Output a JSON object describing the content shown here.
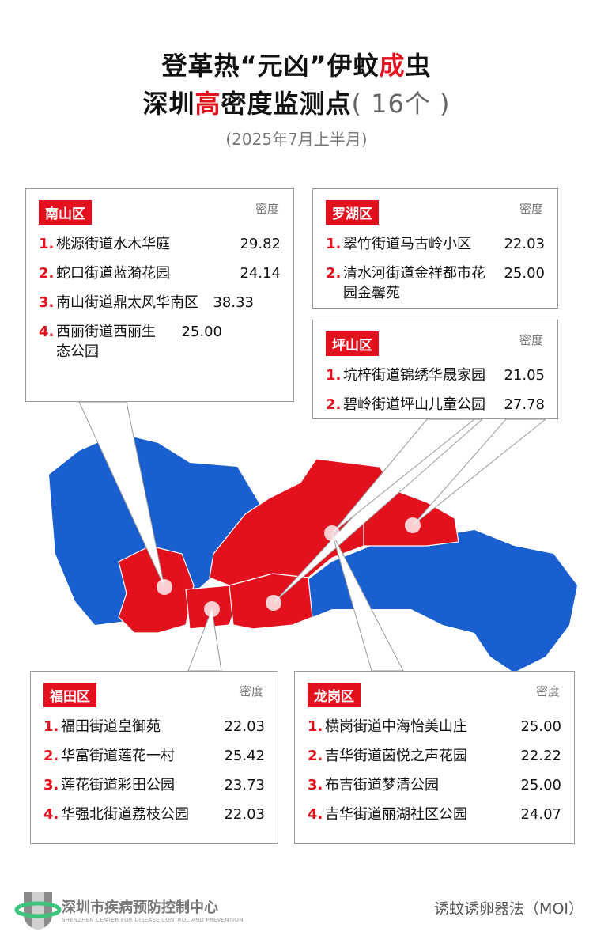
{
  "title": {
    "line1_pre": "登革热“元凶”伊蚊",
    "line1_red": "成",
    "line1_post": "虫",
    "line2_pre": "深圳",
    "line2_red": "高",
    "line2_post": "密度监测点",
    "count": "( 16个 )",
    "subtitle": "(2025年7月上半月)"
  },
  "density_label": "密度",
  "districts": {
    "nanshan": {
      "name": "南山区",
      "items": [
        {
          "n": "1.",
          "name": "桃源街道水木华庭",
          "v": "29.82"
        },
        {
          "n": "2.",
          "name": "蛇口街道蓝漪花园",
          "v": "24.14"
        },
        {
          "n": "3.",
          "name": "南山街道鼎太风华南区",
          "v": "38.33"
        },
        {
          "n": "4.",
          "name": "西丽街道西丽生态公园",
          "v": "25.00"
        }
      ]
    },
    "luohu": {
      "name": "罗湖区",
      "items": [
        {
          "n": "1.",
          "name": "翠竹街道马古岭小区",
          "v": "22.03"
        },
        {
          "n": "2.",
          "name": "清水河街道金祥都市花园金馨苑",
          "v": "25.00"
        }
      ]
    },
    "pingshan": {
      "name": "坪山区",
      "items": [
        {
          "n": "1.",
          "name": "坑梓街道锦绣华晟家园",
          "v": "21.05"
        },
        {
          "n": "2.",
          "name": "碧岭街道坪山儿童公园",
          "v": "27.78"
        }
      ]
    },
    "futian": {
      "name": "福田区",
      "items": [
        {
          "n": "1.",
          "name": "福田街道皇御苑",
          "v": "22.03"
        },
        {
          "n": "2.",
          "name": "华富街道莲花一村",
          "v": "25.42"
        },
        {
          "n": "3.",
          "name": "莲花街道彩田公园",
          "v": "23.73"
        },
        {
          "n": "4.",
          "name": "华强北街道荔枝公园",
          "v": "22.03"
        }
      ]
    },
    "longgang": {
      "name": "龙岗区",
      "items": [
        {
          "n": "1.",
          "name": "横岗街道中海怡美山庄",
          "v": "25.00"
        },
        {
          "n": "2.",
          "name": "吉华街道茵悦之声花园",
          "v": "22.22"
        },
        {
          "n": "3.",
          "name": "布吉街道梦清公园",
          "v": "25.00"
        },
        {
          "n": "4.",
          "name": "吉华街道丽湖社区公园",
          "v": "24.07"
        }
      ]
    }
  },
  "colors": {
    "high": "#e3101e",
    "other": "#1a5fd0"
  },
  "footer": {
    "org": "深圳市疾病预防控制中心",
    "org_en": "SHENZHEN CENTER FOR DISEASE CONTROL AND PREVENTION",
    "method": "诱蚊诱卵器法（MOI）"
  }
}
